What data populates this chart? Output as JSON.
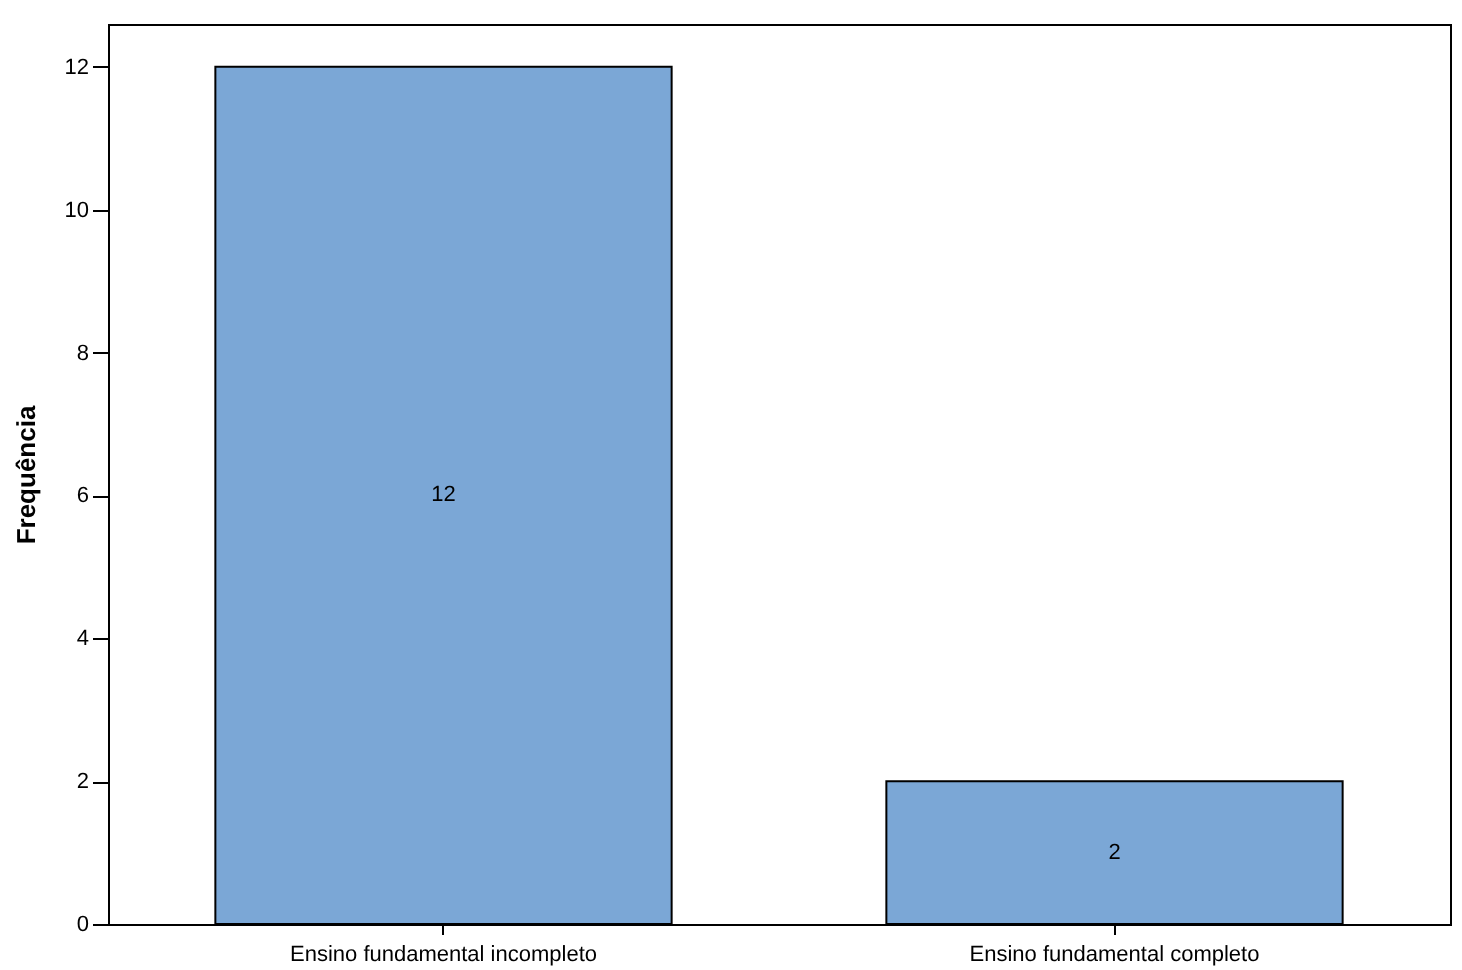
{
  "chart_data": {
    "type": "bar",
    "ylabel": "Frequência",
    "categories": [
      "Ensino fundamental incompleto",
      "Ensino fundamental completo"
    ],
    "values": [
      12,
      2
    ],
    "color": "#7ba7d6",
    "data_labels": true,
    "ylim": [
      0,
      12.6
    ],
    "yticks": [
      0,
      2,
      4,
      6,
      8,
      10,
      12
    ],
    "grid": false
  }
}
